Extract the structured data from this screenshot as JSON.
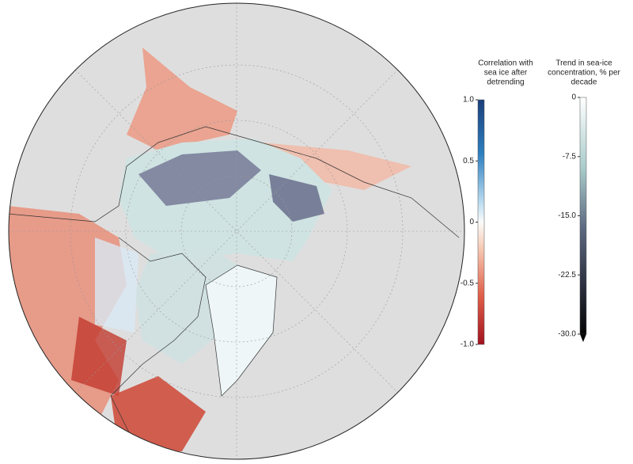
{
  "colorbars": [
    {
      "title": [
        "Correlation with",
        "sea ice after",
        "detrending"
      ],
      "lim": [
        -1,
        1
      ],
      "ticks": [
        {
          "value": 1,
          "label": "1.0"
        },
        0.5,
        0,
        -0.5,
        {
          "value": -1,
          "label": "-1.0"
        }
      ]
    },
    {
      "title": [
        "Trend in sea-ice",
        "concentration, % per",
        "decade"
      ],
      "lim": [
        -30,
        0
      ],
      "ticks": [
        0,
        -7.5,
        {
          "value": -15,
          "label": "-15.0"
        },
        -22.5,
        {
          "value": -30,
          "label": "-30.0"
        }
      ]
    }
  ]
}
